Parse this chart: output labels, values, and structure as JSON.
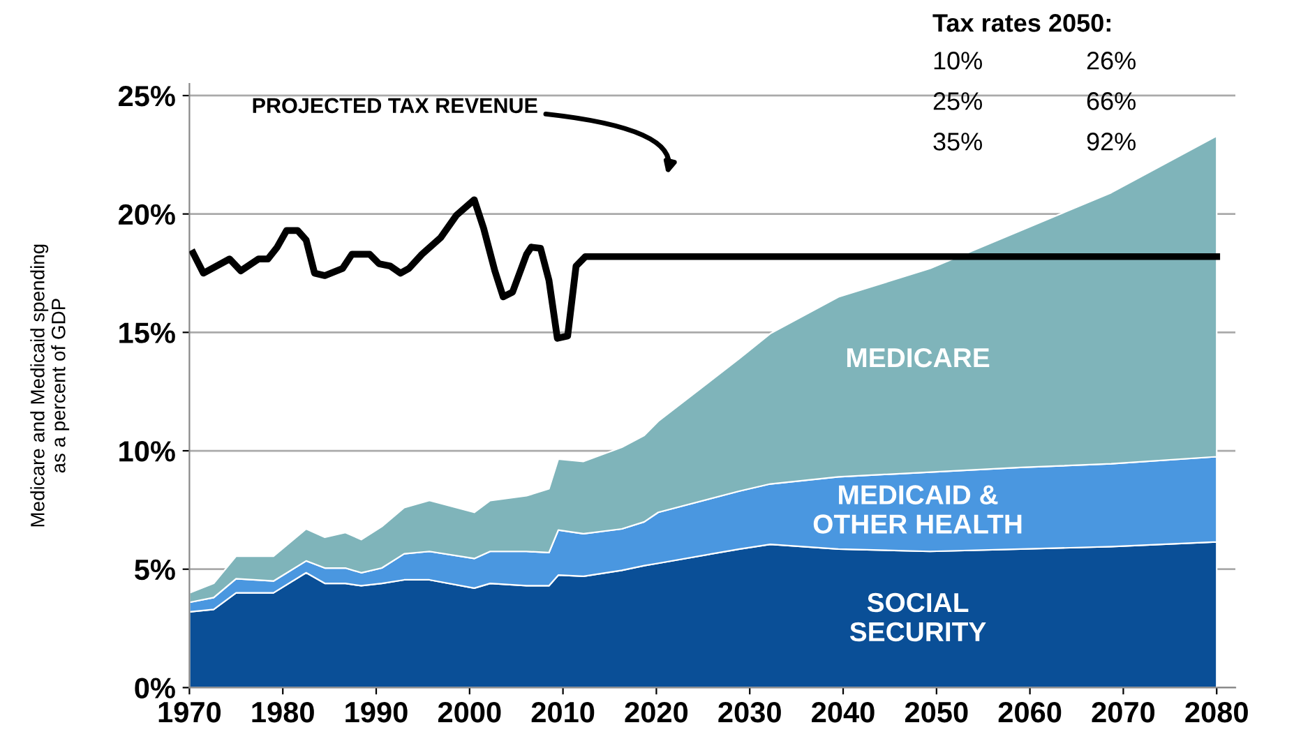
{
  "chart_data": {
    "type": "area",
    "stacked": true,
    "ylabel": "Medicare and Medicaid spending\nas a percent of GDP",
    "x": [
      1970,
      1972.6,
      1975,
      1979,
      1982.5,
      1984.5,
      1986.7,
      1988.4,
      1990.6,
      1993,
      1995.7,
      2000.5,
      2002.2,
      2006.1,
      2008.5,
      2009.5,
      2012.2,
      2016.3,
      2018.7,
      2020.2,
      2028.9,
      2032.2,
      2039.5,
      2049.3,
      2059,
      2068.7,
      2080
    ],
    "series": [
      {
        "name": "SOCIAL SECURITY",
        "color": "#0a4f97",
        "values": [
          3.2,
          3.3,
          4.0,
          4.0,
          4.85,
          4.4,
          4.4,
          4.3,
          4.4,
          4.55,
          4.55,
          4.2,
          4.4,
          4.3,
          4.3,
          4.75,
          4.7,
          4.95,
          5.15,
          5.25,
          5.85,
          6.05,
          5.85,
          5.75,
          5.85,
          5.95,
          6.15
        ]
      },
      {
        "name": "MEDICAID & OTHER HEALTH",
        "color": "#4a97e0",
        "values": [
          0.4,
          0.5,
          0.6,
          0.5,
          0.5,
          0.65,
          0.65,
          0.55,
          0.65,
          1.1,
          1.2,
          1.25,
          1.35,
          1.45,
          1.4,
          1.9,
          1.8,
          1.75,
          1.85,
          2.15,
          2.45,
          2.55,
          3.05,
          3.35,
          3.45,
          3.5,
          3.6
        ]
      },
      {
        "name": "MEDICARE",
        "color": "#7fb4ba",
        "values": [
          0.4,
          0.6,
          0.95,
          1.05,
          1.35,
          1.3,
          1.5,
          1.4,
          1.75,
          1.95,
          2.15,
          1.95,
          2.15,
          2.35,
          2.7,
          3.0,
          3.05,
          3.45,
          3.65,
          3.85,
          5.6,
          6.35,
          7.6,
          8.6,
          10.0,
          11.45,
          13.55
        ]
      },
      {
        "name": "PROJECTED TAX REVENUE",
        "type": "line",
        "color": "#000000",
        "x": [
          1970.4,
          1971.5,
          1974.3,
          1975.5,
          1977.4,
          1978.4,
          1979.4,
          1980.4,
          1981.6,
          1982.5,
          1983.4,
          1984.5,
          1986.4,
          1987.4,
          1989.3,
          1990.3,
          1991.5,
          1992.6,
          1993.5,
          1994.9,
          1996.9,
          1998.6,
          2000.5,
          2001.5,
          2002.7,
          2003.6,
          2004.6,
          2006.1,
          2006.6,
          2007.6,
          2008.5,
          2009.4,
          2010.5,
          2011.4,
          2012.4,
          2080
        ],
        "values": [
          18.35,
          17.5,
          18.1,
          17.6,
          18.1,
          18.1,
          18.6,
          19.3,
          19.3,
          18.9,
          17.5,
          17.4,
          17.7,
          18.3,
          18.3,
          17.9,
          17.8,
          17.5,
          17.7,
          18.3,
          19.0,
          19.95,
          20.6,
          19.4,
          17.6,
          16.5,
          16.7,
          18.3,
          18.6,
          18.55,
          17.2,
          14.75,
          14.85,
          17.8,
          18.2,
          18.2
        ]
      }
    ],
    "xlim": [
      1970,
      2082
    ],
    "xticks": [
      1970,
      1980,
      1990,
      2000,
      2010,
      2020,
      2030,
      2040,
      2050,
      2060,
      2070,
      2080
    ],
    "ylim": [
      0,
      25.5
    ],
    "yticks": [
      {
        "value": 0,
        "label": "0%"
      },
      {
        "value": 5,
        "label": "5%"
      },
      {
        "value": 10,
        "label": "10%"
      },
      {
        "value": 15,
        "label": "15%"
      },
      {
        "value": 20,
        "label": "20%"
      },
      {
        "value": 25,
        "label": "25%"
      }
    ],
    "grid": "y",
    "annotations": [
      "Tax rates 2050:",
      "10%",
      "26%",
      "25%",
      "66%",
      "35%",
      "92%"
    ]
  }
}
